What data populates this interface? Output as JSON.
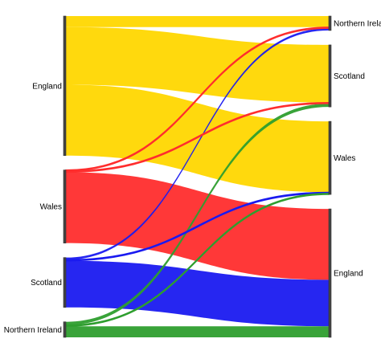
{
  "diagram": {
    "type": "sankey",
    "source_nodes": [
      {
        "id": "England",
        "label": "England",
        "color": "#FFD700"
      },
      {
        "id": "Wales",
        "label": "Wales",
        "color": "#FF2D2D"
      },
      {
        "id": "Scotland",
        "label": "Scotland",
        "color": "#1A1AF0"
      },
      {
        "id": "NorthernIreland",
        "label": "Northern Ireland",
        "color": "#2E9E2E"
      }
    ],
    "target_nodes": [
      {
        "id": "NorthernIreland",
        "label": "Northern Ireland"
      },
      {
        "id": "Scotland",
        "label": "Scotland"
      },
      {
        "id": "Wales",
        "label": "Wales"
      },
      {
        "id": "England",
        "label": "England"
      }
    ],
    "flows": [
      {
        "from": "England",
        "to": "NorthernIreland",
        "value": 10
      },
      {
        "from": "England",
        "to": "Scotland",
        "value": 52
      },
      {
        "from": "England",
        "to": "Wales",
        "value": 64
      },
      {
        "from": "Wales",
        "to": "NorthernIreland",
        "value": 1
      },
      {
        "from": "Wales",
        "to": "Scotland",
        "value": 1
      },
      {
        "from": "Wales",
        "to": "England",
        "value": 64
      },
      {
        "from": "Scotland",
        "to": "NorthernIreland",
        "value": 2
      },
      {
        "from": "Scotland",
        "to": "Wales",
        "value": 1
      },
      {
        "from": "Scotland",
        "to": "England",
        "value": 42
      },
      {
        "from": "NorthernIreland",
        "to": "Scotland",
        "value": 3
      },
      {
        "from": "NorthernIreland",
        "to": "Wales",
        "value": 1
      },
      {
        "from": "NorthernIreland",
        "to": "England",
        "value": 10
      }
    ]
  }
}
